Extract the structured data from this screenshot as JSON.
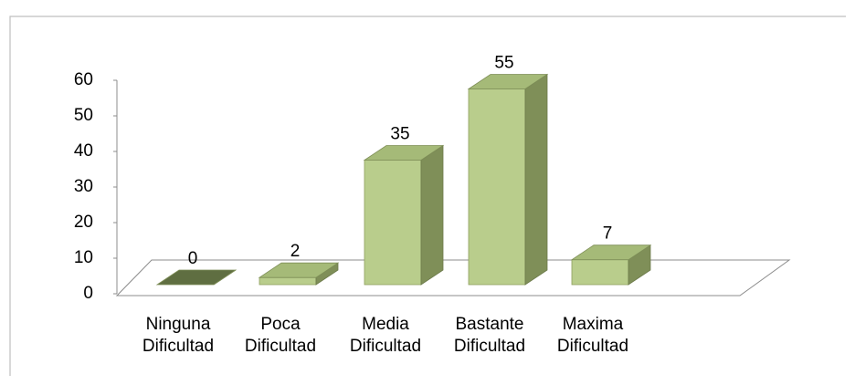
{
  "chart_data": {
    "type": "bar3d",
    "categories": [
      "Ninguna Dificultad",
      "Poca Dificultad",
      "Media Dificultad",
      "Bastante Dificultad",
      "Maxima Dificultad"
    ],
    "values": [
      0,
      2,
      35,
      55,
      7
    ],
    "color": "#b9cd8c",
    "ylim": [
      0,
      60
    ],
    "yticks": [
      0,
      10,
      20,
      30,
      40,
      50,
      60
    ],
    "grid": false
  }
}
